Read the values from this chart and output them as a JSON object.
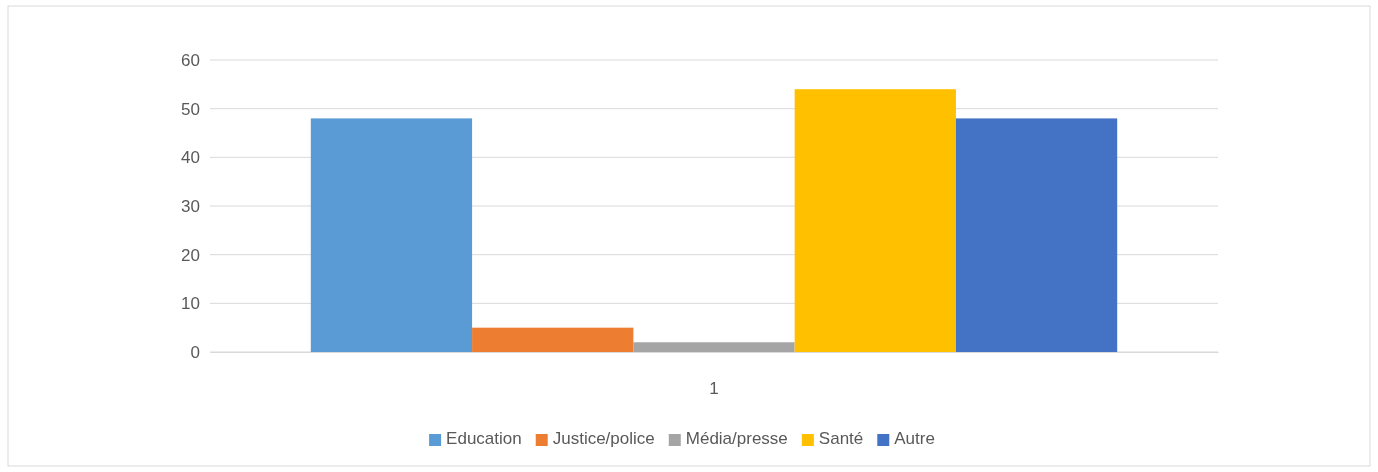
{
  "chart_data": {
    "type": "bar",
    "categories": [
      "1"
    ],
    "series": [
      {
        "name": "Education",
        "color": "#5b9bd5",
        "values": [
          48
        ]
      },
      {
        "name": "Justice/police",
        "color": "#ed7d31",
        "values": [
          5
        ]
      },
      {
        "name": "Média/presse",
        "color": "#a5a5a5",
        "values": [
          2
        ]
      },
      {
        "name": "Santé",
        "color": "#ffc000",
        "values": [
          54
        ]
      },
      {
        "name": "Autre",
        "color": "#4472c4",
        "values": [
          48
        ]
      }
    ],
    "ylim": [
      0,
      60
    ],
    "yticks": [
      0,
      10,
      20,
      30,
      40,
      50,
      60
    ],
    "grid": "y",
    "legend": "bottom"
  }
}
